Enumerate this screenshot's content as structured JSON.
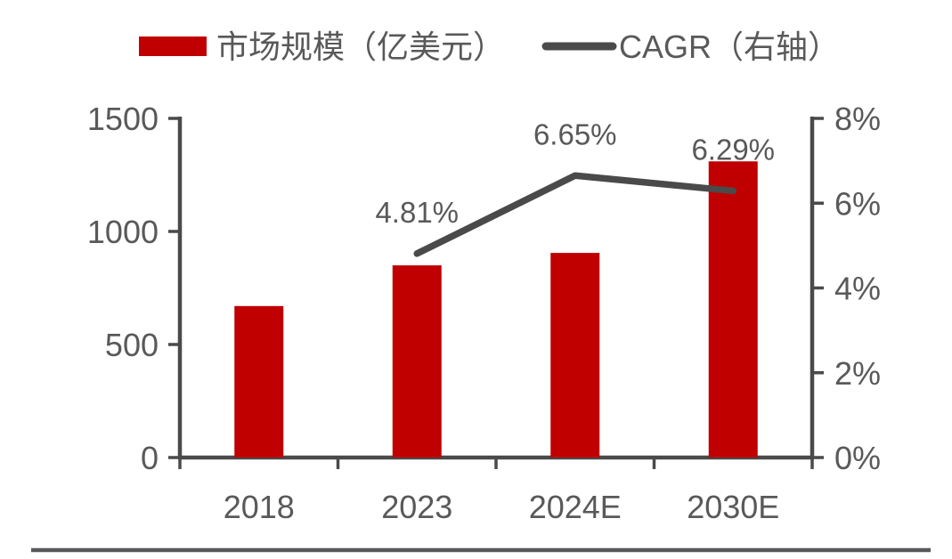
{
  "chart_data": {
    "type": "combo",
    "title": "",
    "categories": [
      "2018",
      "2023",
      "2024E",
      "2030E"
    ],
    "series": [
      {
        "name": "市场规模（亿美元）",
        "type": "bar",
        "axis": "left",
        "color": "#c00000",
        "values": [
          670,
          850,
          905,
          1310
        ]
      },
      {
        "name": "CAGR（右轴）",
        "type": "line",
        "axis": "right",
        "color": "#4a4a4a",
        "values": [
          null,
          4.81,
          6.65,
          6.29
        ],
        "point_labels": [
          null,
          "4.81%",
          "6.65%",
          "6.29%"
        ]
      }
    ],
    "left_axis": {
      "min": 0,
      "max": 1500,
      "ticks": [
        0,
        500,
        1000,
        1500
      ],
      "tick_labels": [
        "0",
        "500",
        "1000",
        "1500"
      ]
    },
    "right_axis": {
      "min": 0,
      "max": 8,
      "ticks": [
        0,
        2,
        4,
        6,
        8
      ],
      "tick_labels": [
        "0%",
        "2%",
        "4%",
        "6%",
        "8%"
      ]
    },
    "legend_position": "top",
    "grid": false
  },
  "colors": {
    "bar_red": "#c00000",
    "line_gray": "#4a4a4a",
    "text_gray": "#595959",
    "divider_gray": "#58585a"
  }
}
